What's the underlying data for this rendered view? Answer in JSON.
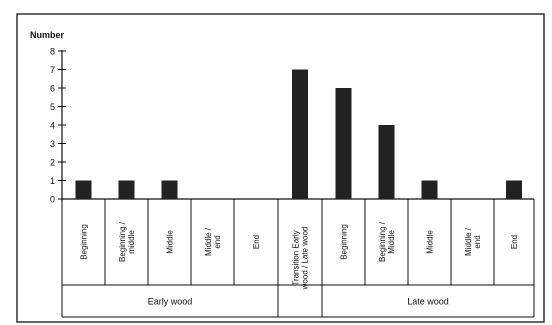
{
  "chart_data": {
    "type": "bar",
    "ylabel": "Number",
    "ylim": [
      0,
      8
    ],
    "yticks": [
      0,
      1,
      2,
      3,
      4,
      5,
      6,
      7,
      8
    ],
    "grid": false,
    "legend": "none",
    "bar_color": "#222222",
    "categories": [
      "Beginning",
      "Beginning / middle",
      "Middle",
      "Middle / end",
      "End",
      "Transition Early wood / Late wood",
      "Beginning",
      "Beginning / Middle",
      "Middle",
      "Middle / end",
      "End"
    ],
    "values": [
      1,
      1,
      1,
      0,
      0,
      7,
      6,
      4,
      1,
      0,
      1
    ],
    "groups": [
      {
        "label": "Early wood",
        "categories": [
          0,
          1,
          2,
          3,
          4
        ]
      },
      {
        "label": "",
        "categories": [
          5
        ]
      },
      {
        "label": "Late wood",
        "categories": [
          6,
          7,
          8,
          9,
          10
        ]
      }
    ]
  }
}
